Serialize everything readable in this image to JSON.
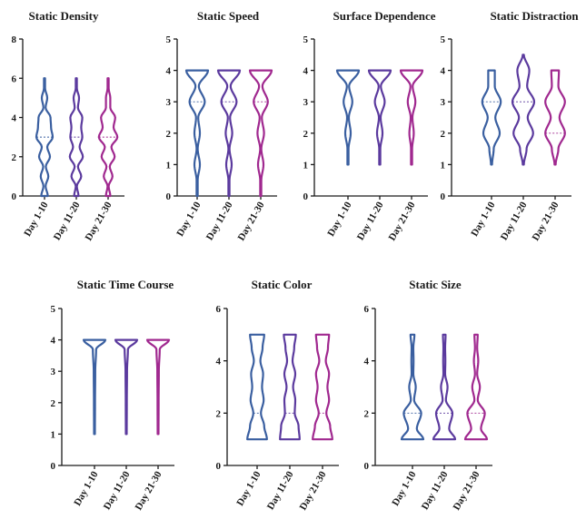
{
  "chart_data": [
    {
      "type": "violin",
      "title": "Static Density",
      "categories": [
        "Day 1-10",
        "Day 11-20",
        "Day 21-30"
      ],
      "ylim": [
        0,
        8
      ],
      "yticks": [
        0,
        2,
        4,
        6,
        8
      ],
      "series": [
        {
          "category": "Day 1-10",
          "color": "#3a5fa0",
          "min": 0,
          "max": 6,
          "median": 3,
          "profile": [
            [
              0,
              0.3
            ],
            [
              0.5,
              0.1
            ],
            [
              1,
              0.35
            ],
            [
              1.5,
              0.12
            ],
            [
              2,
              0.5
            ],
            [
              2.5,
              0.25
            ],
            [
              3,
              0.75
            ],
            [
              3.5,
              0.6
            ],
            [
              4,
              0.55
            ],
            [
              4.5,
              0.1
            ],
            [
              5,
              0.25
            ],
            [
              5.5,
              0.05
            ],
            [
              6,
              0.05
            ]
          ]
        },
        {
          "category": "Day 11-20",
          "color": "#5b3a9e",
          "min": 0,
          "max": 6,
          "median": 3,
          "profile": [
            [
              0,
              0.2
            ],
            [
              0.5,
              0.05
            ],
            [
              1,
              0.45
            ],
            [
              1.5,
              0.15
            ],
            [
              2,
              0.6
            ],
            [
              2.5,
              0.3
            ],
            [
              3,
              0.55
            ],
            [
              3.5,
              0.45
            ],
            [
              4,
              0.55
            ],
            [
              4.5,
              0.15
            ],
            [
              5,
              0.25
            ],
            [
              5.5,
              0.05
            ],
            [
              6,
              0.05
            ]
          ]
        },
        {
          "category": "Day 21-30",
          "color": "#a0288f",
          "min": 0,
          "max": 6,
          "median": 3,
          "profile": [
            [
              0,
              0.2
            ],
            [
              0.5,
              0.05
            ],
            [
              1,
              0.4
            ],
            [
              1.5,
              0.15
            ],
            [
              2,
              0.6
            ],
            [
              2.5,
              0.3
            ],
            [
              3,
              0.85
            ],
            [
              3.5,
              0.5
            ],
            [
              4,
              0.65
            ],
            [
              4.5,
              0.2
            ],
            [
              5,
              0.2
            ],
            [
              5.5,
              0.05
            ],
            [
              6,
              0.05
            ]
          ]
        }
      ]
    },
    {
      "type": "violin",
      "title": "Static Speed",
      "categories": [
        "Day 1-10",
        "Day 11-20",
        "Day 21-30"
      ],
      "ylim": [
        0,
        5
      ],
      "yticks": [
        0,
        1,
        2,
        3,
        4,
        5
      ],
      "series": [
        {
          "category": "Day 1-10",
          "color": "#3a5fa0",
          "min": 0,
          "max": 4,
          "median": 3,
          "profile": [
            [
              0,
              0.05
            ],
            [
              0.5,
              0.05
            ],
            [
              1,
              0.25
            ],
            [
              1.5,
              0.05
            ],
            [
              2,
              0.25
            ],
            [
              2.5,
              0.1
            ],
            [
              3,
              0.7
            ],
            [
              3.5,
              0.15
            ],
            [
              4,
              1.0
            ]
          ]
        },
        {
          "category": "Day 11-20",
          "color": "#5b3a9e",
          "min": 0,
          "max": 4,
          "median": 3,
          "profile": [
            [
              0,
              0.05
            ],
            [
              0.5,
              0.05
            ],
            [
              1,
              0.25
            ],
            [
              1.5,
              0.05
            ],
            [
              2,
              0.3
            ],
            [
              2.5,
              0.1
            ],
            [
              3,
              0.7
            ],
            [
              3.5,
              0.15
            ],
            [
              4,
              1.0
            ]
          ]
        },
        {
          "category": "Day 21-30",
          "color": "#a0288f",
          "min": 0,
          "max": 4,
          "median": 3,
          "profile": [
            [
              0,
              0.05
            ],
            [
              0.5,
              0.05
            ],
            [
              1,
              0.25
            ],
            [
              1.5,
              0.05
            ],
            [
              2,
              0.3
            ],
            [
              2.5,
              0.1
            ],
            [
              3,
              0.65
            ],
            [
              3.5,
              0.15
            ],
            [
              4,
              1.0
            ]
          ]
        }
      ]
    },
    {
      "type": "violin",
      "title": "Surface Dependence",
      "categories": [
        "Day 1-10",
        "Day 11-20",
        "Day 21-30"
      ],
      "ylim": [
        0,
        5
      ],
      "yticks": [
        0,
        1,
        2,
        3,
        4,
        5
      ],
      "series": [
        {
          "category": "Day 1-10",
          "color": "#3a5fa0",
          "min": 1,
          "max": 4,
          "median": 4,
          "profile": [
            [
              1,
              0.05
            ],
            [
              1.5,
              0.05
            ],
            [
              2,
              0.25
            ],
            [
              2.5,
              0.08
            ],
            [
              3,
              0.4
            ],
            [
              3.5,
              0.1
            ],
            [
              4,
              1.0
            ]
          ]
        },
        {
          "category": "Day 11-20",
          "color": "#5b3a9e",
          "min": 1,
          "max": 4,
          "median": 4,
          "profile": [
            [
              1,
              0.05
            ],
            [
              1.5,
              0.05
            ],
            [
              2,
              0.25
            ],
            [
              2.5,
              0.08
            ],
            [
              3,
              0.45
            ],
            [
              3.5,
              0.1
            ],
            [
              4,
              1.0
            ]
          ]
        },
        {
          "category": "Day 21-30",
          "color": "#a0288f",
          "min": 1,
          "max": 4,
          "median": 4,
          "profile": [
            [
              1,
              0.05
            ],
            [
              1.5,
              0.05
            ],
            [
              2,
              0.2
            ],
            [
              2.5,
              0.08
            ],
            [
              3,
              0.35
            ],
            [
              3.5,
              0.1
            ],
            [
              4,
              1.0
            ]
          ]
        }
      ]
    },
    {
      "type": "violin",
      "title": "Static Distraction",
      "categories": [
        "Day 1-10",
        "Day 11-20",
        "Day 21-30"
      ],
      "ylim": [
        0,
        5
      ],
      "yticks": [
        0,
        1,
        2,
        3,
        4,
        5
      ],
      "series": [
        {
          "category": "Day 1-10",
          "color": "#3a5fa0",
          "min": 1,
          "max": 4,
          "median": 3,
          "profile": [
            [
              1,
              0.05
            ],
            [
              1.5,
              0.2
            ],
            [
              2,
              0.75
            ],
            [
              2.5,
              0.35
            ],
            [
              3,
              0.85
            ],
            [
              3.5,
              0.3
            ],
            [
              4,
              0.3
            ]
          ]
        },
        {
          "category": "Day 11-20",
          "color": "#5b3a9e",
          "min": 1,
          "max": 4.5,
          "median": 3,
          "profile": [
            [
              1,
              0.05
            ],
            [
              1.5,
              0.3
            ],
            [
              2,
              0.9
            ],
            [
              2.5,
              0.4
            ],
            [
              3,
              1.0
            ],
            [
              3.5,
              0.35
            ],
            [
              4,
              0.55
            ],
            [
              4.5,
              0.05
            ]
          ]
        },
        {
          "category": "Day 21-30",
          "color": "#a0288f",
          "min": 1,
          "max": 4,
          "median": 2,
          "profile": [
            [
              1,
              0.05
            ],
            [
              1.5,
              0.3
            ],
            [
              2,
              0.9
            ],
            [
              2.5,
              0.4
            ],
            [
              3,
              0.9
            ],
            [
              3.5,
              0.3
            ],
            [
              4,
              0.35
            ]
          ]
        }
      ]
    },
    {
      "type": "violin",
      "title": "Static Time Course",
      "categories": [
        "Day 1-10",
        "Day 11-20",
        "Day 21-30"
      ],
      "ylim": [
        0,
        5
      ],
      "yticks": [
        0,
        1,
        2,
        3,
        4,
        5
      ],
      "series": [
        {
          "category": "Day 1-10",
          "color": "#3a5fa0",
          "min": 1,
          "max": 4,
          "median": 4,
          "profile": [
            [
              1,
              0.04
            ],
            [
              2,
              0.05
            ],
            [
              3,
              0.07
            ],
            [
              3.7,
              0.15
            ],
            [
              4,
              1.0
            ]
          ]
        },
        {
          "category": "Day 11-20",
          "color": "#5b3a9e",
          "min": 1,
          "max": 4,
          "median": 4,
          "profile": [
            [
              1,
              0.04
            ],
            [
              2,
              0.05
            ],
            [
              3,
              0.07
            ],
            [
              3.7,
              0.15
            ],
            [
              4,
              1.0
            ]
          ]
        },
        {
          "category": "Day 21-30",
          "color": "#a0288f",
          "min": 1,
          "max": 4,
          "median": 4,
          "profile": [
            [
              1,
              0.04
            ],
            [
              2,
              0.05
            ],
            [
              3,
              0.07
            ],
            [
              3.7,
              0.15
            ],
            [
              4,
              1.0
            ]
          ]
        }
      ]
    },
    {
      "type": "violin",
      "title": "Static Color",
      "categories": [
        "Day 1-10",
        "Day 11-20",
        "Day 21-30"
      ],
      "ylim": [
        0,
        6
      ],
      "yticks": [
        0,
        2,
        4,
        6
      ],
      "series": [
        {
          "category": "Day 1-10",
          "color": "#3a5fa0",
          "min": 1,
          "max": 5,
          "median": 2,
          "profile": [
            [
              1,
              0.9
            ],
            [
              1.5,
              0.65
            ],
            [
              2,
              0.35
            ],
            [
              2.5,
              0.6
            ],
            [
              3,
              0.45
            ],
            [
              3.5,
              0.55
            ],
            [
              4,
              0.3
            ],
            [
              4.5,
              0.5
            ],
            [
              5,
              0.65
            ]
          ]
        },
        {
          "category": "Day 11-20",
          "color": "#5b3a9e",
          "min": 1,
          "max": 5,
          "median": 2,
          "profile": [
            [
              1,
              0.9
            ],
            [
              1.5,
              0.8
            ],
            [
              2,
              0.45
            ],
            [
              2.5,
              0.5
            ],
            [
              3,
              0.3
            ],
            [
              3.5,
              0.5
            ],
            [
              4,
              0.25
            ],
            [
              4.5,
              0.4
            ],
            [
              5,
              0.55
            ]
          ]
        },
        {
          "category": "Day 21-30",
          "color": "#a0288f",
          "min": 1,
          "max": 5,
          "median": 2,
          "profile": [
            [
              1,
              0.9
            ],
            [
              1.5,
              0.7
            ],
            [
              2,
              0.35
            ],
            [
              2.5,
              0.6
            ],
            [
              3,
              0.45
            ],
            [
              3.5,
              0.6
            ],
            [
              4,
              0.3
            ],
            [
              4.5,
              0.5
            ],
            [
              5,
              0.6
            ]
          ]
        }
      ]
    },
    {
      "type": "violin",
      "title": "Static Size",
      "categories": [
        "Day 1-10",
        "Day 11-20",
        "Day 21-30"
      ],
      "ylim": [
        0,
        6
      ],
      "yticks": [
        0,
        2,
        4,
        6
      ],
      "series": [
        {
          "category": "Day 1-10",
          "color": "#3a5fa0",
          "min": 1,
          "max": 5,
          "median": 2,
          "profile": [
            [
              1,
              1.0
            ],
            [
              1.4,
              0.4
            ],
            [
              2,
              0.8
            ],
            [
              2.5,
              0.15
            ],
            [
              3,
              0.3
            ],
            [
              3.5,
              0.08
            ],
            [
              4,
              0.1
            ],
            [
              4.5,
              0.08
            ],
            [
              5,
              0.18
            ]
          ]
        },
        {
          "category": "Day 11-20",
          "color": "#5b3a9e",
          "min": 1,
          "max": 5,
          "median": 2,
          "profile": [
            [
              1,
              1.0
            ],
            [
              1.4,
              0.45
            ],
            [
              2,
              0.75
            ],
            [
              2.5,
              0.15
            ],
            [
              3,
              0.3
            ],
            [
              3.5,
              0.08
            ],
            [
              4,
              0.1
            ],
            [
              4.5,
              0.08
            ],
            [
              5,
              0.12
            ]
          ]
        },
        {
          "category": "Day 21-30",
          "color": "#a0288f",
          "min": 1,
          "max": 5,
          "median": 2,
          "profile": [
            [
              1,
              1.0
            ],
            [
              1.4,
              0.45
            ],
            [
              2,
              0.8
            ],
            [
              2.5,
              0.15
            ],
            [
              3,
              0.35
            ],
            [
              3.5,
              0.1
            ],
            [
              4,
              0.2
            ],
            [
              4.5,
              0.1
            ],
            [
              5,
              0.15
            ]
          ]
        }
      ]
    }
  ]
}
